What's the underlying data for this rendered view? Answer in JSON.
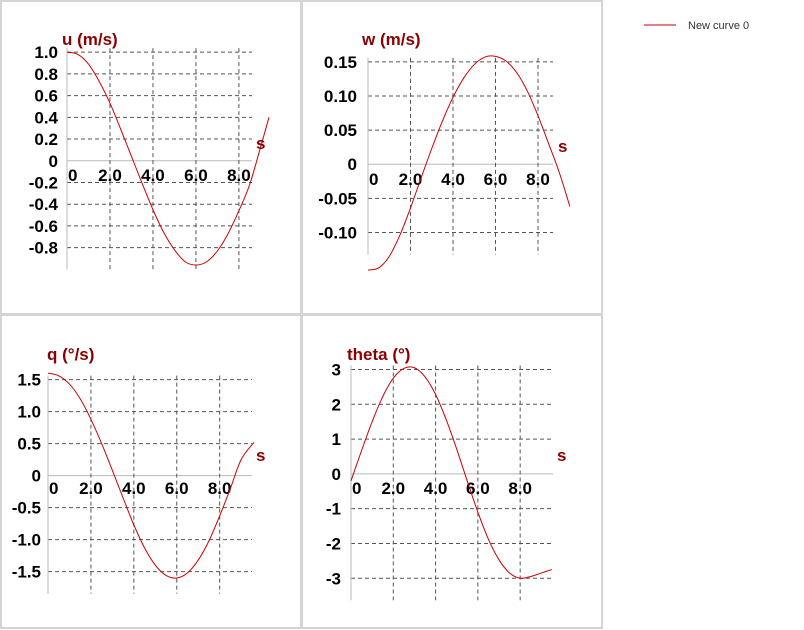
{
  "legend": {
    "label": "New curve 0",
    "color": "#cc0000"
  },
  "chart_data": [
    {
      "type": "line",
      "title": "u (m/s)",
      "xlabel": "s",
      "xlim": [
        0,
        9.4
      ],
      "ylim": [
        -0.96,
        1.02
      ],
      "x_ticks": [
        0,
        2,
        4,
        6,
        8
      ],
      "x_tick_labels": [
        "0",
        "2.0",
        "4.0",
        "6.0",
        "8.0"
      ],
      "y_ticks": [
        1.0,
        0.8,
        0.6,
        0.4,
        0.2,
        0,
        -0.2,
        -0.4,
        -0.6,
        -0.8
      ],
      "y_tick_labels": [
        "1.0",
        "0.8",
        "0.6",
        "0.4",
        "0.2",
        "0",
        "-0.2",
        "-0.4",
        "-0.6",
        "-0.8"
      ],
      "series": [
        {
          "name": "New curve 0",
          "x": [
            0,
            0.5,
            1.0,
            1.5,
            2.0,
            2.5,
            3.0,
            3.5,
            4.0,
            4.5,
            5.0,
            5.5,
            6.0,
            6.5,
            7.0,
            7.5,
            8.0,
            8.5,
            9.0,
            9.4
          ],
          "y": [
            1.0,
            0.98,
            0.89,
            0.73,
            0.53,
            0.29,
            0.04,
            -0.21,
            -0.45,
            -0.66,
            -0.82,
            -0.93,
            -0.96,
            -0.93,
            -0.83,
            -0.67,
            -0.46,
            -0.22,
            0.12,
            0.4
          ]
        }
      ]
    },
    {
      "type": "line",
      "title": "w (m/s)",
      "xlabel": "s",
      "xlim": [
        0,
        9.6
      ],
      "ylim": [
        -0.155,
        0.16
      ],
      "x_ticks": [
        0,
        2,
        4,
        6,
        8
      ],
      "x_tick_labels": [
        "0",
        "2.0",
        "4.0",
        "6.0",
        "8.0"
      ],
      "y_ticks": [
        0.15,
        0.1,
        0.05,
        0,
        -0.05,
        -0.1
      ],
      "y_tick_labels": [
        "0.15",
        "0.10",
        "0.05",
        "0",
        "-0.05",
        "-0.10"
      ],
      "series": [
        {
          "name": "New curve 0",
          "x": [
            0,
            0.5,
            1.0,
            1.5,
            2.0,
            2.5,
            3.0,
            3.5,
            4.0,
            4.5,
            5.0,
            5.5,
            6.0,
            6.5,
            7.0,
            7.5,
            8.0,
            8.5,
            9.0,
            9.5
          ],
          "y": [
            -0.155,
            -0.152,
            -0.135,
            -0.104,
            -0.064,
            -0.02,
            0.023,
            0.063,
            0.098,
            0.126,
            0.146,
            0.157,
            0.158,
            0.151,
            0.134,
            0.107,
            0.071,
            0.03,
            -0.012,
            -0.062
          ]
        }
      ]
    },
    {
      "type": "line",
      "title": "q (°/s)",
      "xlabel": "s",
      "xlim": [
        0,
        9.6
      ],
      "ylim": [
        -1.6,
        1.65
      ],
      "x_ticks": [
        0,
        2,
        4,
        6,
        8
      ],
      "x_tick_labels": [
        "0",
        "2.0",
        "4.0",
        "6.0",
        "8.0"
      ],
      "y_ticks": [
        1.5,
        1.0,
        0.5,
        0,
        -0.5,
        -1.0,
        -1.5
      ],
      "y_tick_labels": [
        "1.5",
        "1.0",
        "0.5",
        "0",
        "-0.5",
        "-1.0",
        "-1.5"
      ],
      "series": [
        {
          "name": "New curve 0",
          "x": [
            0,
            0.5,
            1.0,
            1.5,
            2.0,
            2.5,
            3.0,
            3.5,
            4.0,
            4.5,
            5.0,
            5.5,
            6.0,
            6.5,
            7.0,
            7.5,
            8.0,
            8.5,
            9.0,
            9.6
          ],
          "y": [
            1.6,
            1.56,
            1.43,
            1.2,
            0.88,
            0.5,
            0.08,
            -0.35,
            -0.77,
            -1.13,
            -1.4,
            -1.56,
            -1.6,
            -1.52,
            -1.32,
            -1.02,
            -0.63,
            -0.2,
            0.25,
            0.52
          ]
        }
      ]
    },
    {
      "type": "line",
      "title": "theta (°)",
      "xlabel": "s",
      "xlim": [
        0,
        9.6
      ],
      "ylim": [
        -3.05,
        3.1
      ],
      "x_ticks": [
        0,
        2,
        4,
        6,
        8
      ],
      "x_tick_labels": [
        "0",
        "2.0",
        "4.0",
        "6.0",
        "8.0"
      ],
      "y_ticks": [
        3,
        2,
        1,
        0,
        -1,
        -2,
        -3
      ],
      "y_tick_labels": [
        "3",
        "2",
        "1",
        "0",
        "-1",
        "-2",
        "-3"
      ],
      "series": [
        {
          "name": "New curve 0",
          "x": [
            0,
            0.5,
            1.0,
            1.5,
            2.0,
            2.5,
            3.0,
            3.5,
            4.0,
            4.5,
            5.0,
            5.5,
            6.0,
            6.5,
            7.0,
            7.5,
            8.0,
            8.5,
            9.0,
            9.5
          ],
          "y": [
            -0.2,
            0.67,
            1.5,
            2.22,
            2.75,
            3.03,
            3.05,
            2.79,
            2.28,
            1.56,
            0.71,
            -0.21,
            -1.1,
            -1.88,
            -2.47,
            -2.85,
            -3.0,
            -2.95,
            -2.85,
            -2.75
          ]
        }
      ]
    }
  ]
}
